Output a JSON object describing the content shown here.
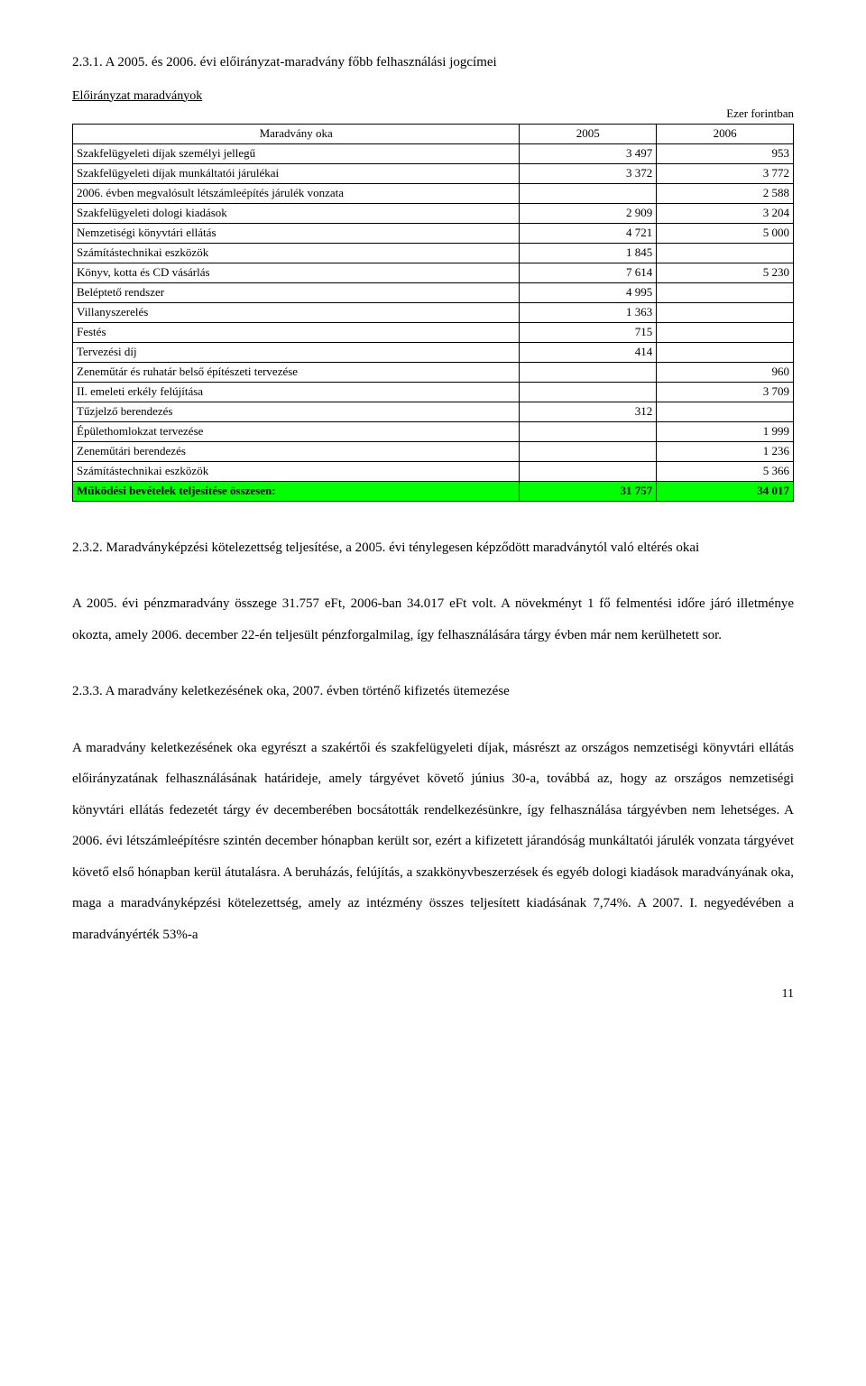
{
  "heading1": "2.3.1. A 2005. és 2006. évi előirányzat-maradvány főbb felhasználási jogcímei",
  "table_title": "Előirányzat maradványok",
  "unit_label": "Ezer forintban",
  "header": {
    "c0": "Maradvány oka",
    "c1": "2005",
    "c2": "2006"
  },
  "rows": [
    {
      "label": "Szakfelügyeleti díjak személyi jellegű",
      "v1": "3 497",
      "v2": "953"
    },
    {
      "label": "Szakfelügyeleti díjak munkáltatói járulékai",
      "v1": "3 372",
      "v2": "3 772"
    },
    {
      "label": "2006. évben megvalósult létszámleépítés járulék vonzata",
      "v1": "",
      "v2": "2 588"
    },
    {
      "label": "Szakfelügyeleti dologi kiadások",
      "v1": "2 909",
      "v2": "3 204"
    },
    {
      "label": "Nemzetiségi könyvtári ellátás",
      "v1": "4 721",
      "v2": "5 000"
    },
    {
      "label": "Számítástechnikai eszközök",
      "v1": "1 845",
      "v2": ""
    },
    {
      "label": "Könyv, kotta és CD vásárlás",
      "v1": "7 614",
      "v2": "5 230"
    },
    {
      "label": "Beléptető rendszer",
      "v1": "4 995",
      "v2": ""
    },
    {
      "label": "Villanyszerelés",
      "v1": "1 363",
      "v2": ""
    },
    {
      "label": "Festés",
      "v1": "715",
      "v2": ""
    },
    {
      "label": "Tervezési díj",
      "v1": "414",
      "v2": ""
    },
    {
      "label": "Zeneműtár és ruhatár belső építészeti tervezése",
      "v1": "",
      "v2": "960"
    },
    {
      "label": "II. emeleti erkély felújítása",
      "v1": "",
      "v2": "3 709"
    },
    {
      "label": "Tűzjelző berendezés",
      "v1": "312",
      "v2": ""
    },
    {
      "label": "Épülethomlokzat tervezése",
      "v1": "",
      "v2": "1 999"
    },
    {
      "label": "Zeneműtári berendezés",
      "v1": "",
      "v2": "1 236"
    },
    {
      "label": "Számítástechnikai eszközök",
      "v1": "",
      "v2": "5 366"
    }
  ],
  "total": {
    "label": "Működési bevételek teljesítése összesen:",
    "v1": "31 757",
    "v2": "34 017"
  },
  "para1": "2.3.2. Maradványképzési kötelezettség teljesítése, a 2005. évi ténylegesen képződött maradványtól való eltérés okai",
  "para2": "A 2005. évi pénzmaradvány összege 31.757 eFt, 2006-ban 34.017 eFt volt. A növekményt 1 fő felmentési időre járó illetménye okozta, amely 2006. december 22-én teljesült pénzforgalmilag, így felhasználására tárgy évben már nem kerülhetett sor.",
  "para3": "2.3.3. A maradvány keletkezésének oka, 2007. évben történő kifizetés ütemezése",
  "para4": "A maradvány keletkezésének oka egyrészt a szakértői és szakfelügyeleti díjak, másrészt az országos nemzetiségi könyvtári ellátás előirányzatának felhasználásának határideje, amely tárgyévet követő június 30-a, továbbá az, hogy az országos nemzetiségi könyvtári ellátás fedezetét tárgy év decemberében bocsátották rendelkezésünkre, így felhasználása tárgyévben nem lehetséges. A 2006. évi létszámleépítésre szintén december hónapban került sor, ezért a kifizetett járandóság munkáltatói járulék vonzata tárgyévet követő első hónapban kerül átutalásra.  A beruházás, felújítás, a szakkönyvbeszerzések és egyéb dologi kiadások maradványának oka, maga a maradványképzési kötelezettség, amely az intézmény összes teljesített kiadásának 7,74%. A 2007. I. negyedévében a maradványérték 53%-a",
  "page": "11"
}
